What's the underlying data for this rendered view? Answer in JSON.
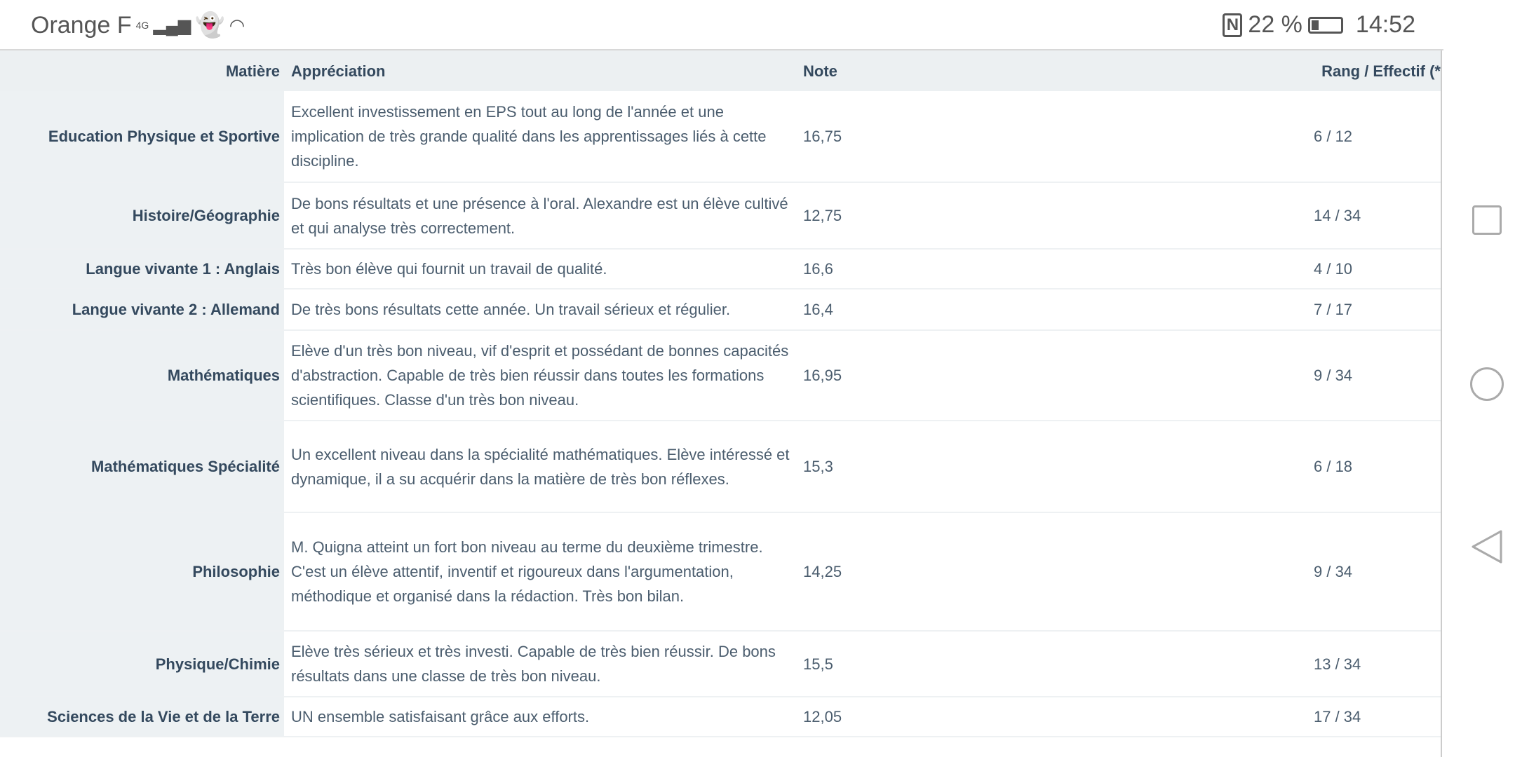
{
  "status_bar": {
    "carrier": "Orange F",
    "network": "4G",
    "battery": "22 %",
    "time": "14:52"
  },
  "table": {
    "headers": {
      "subject": "Matière",
      "appreciation": "Appréciation",
      "grade": "Note",
      "rank": "Rang / Effectif (*"
    },
    "rows": [
      {
        "subject": "Education Physique et Sportive",
        "appreciation": "Excellent investissement en EPS tout au long de l'année et une implication de très grande qualité dans les apprentissages liés à cette discipline.",
        "grade": "16,75",
        "rank": "6 / 12"
      },
      {
        "subject": "Histoire/Géographie",
        "appreciation": "De bons résultats et une présence à l'oral. Alexandre est un élève cultivé et qui analyse très correctement.",
        "grade": "12,75",
        "rank": "14 / 34"
      },
      {
        "subject": "Langue vivante 1 : Anglais",
        "appreciation": "Très bon élève qui fournit un travail de qualité.",
        "grade": "16,6",
        "rank": "4 / 10"
      },
      {
        "subject": "Langue vivante 2 : Allemand",
        "appreciation": "De très bons résultats cette année. Un travail sérieux et régulier.",
        "grade": "16,4",
        "rank": "7 / 17"
      },
      {
        "subject": "Mathématiques",
        "appreciation": "Elève d'un très bon niveau, vif d'esprit et possédant de bonnes capacités d'abstraction. Capable de très bien réussir dans toutes les formations scientifiques. Classe d'un très bon niveau.",
        "grade": "16,95",
        "rank": "9 / 34"
      },
      {
        "subject": "Mathématiques Spécialité",
        "appreciation": "Un excellent niveau dans la spécialité mathématiques. Elève intéressé et dynamique, il a su acquérir dans la matière de très bon réflexes.",
        "grade": "15,3",
        "rank": "6 / 18"
      },
      {
        "subject": "Philosophie",
        "appreciation": "M. Quigna atteint un fort bon niveau au terme du deuxième trimestre. C'est un élève attentif, inventif et rigoureux dans l'argumentation, méthodique et organisé dans la rédaction. Très bon bilan.",
        "grade": "14,25",
        "rank": "9 / 34"
      },
      {
        "subject": "Physique/Chimie",
        "appreciation": "Elève très sérieux et très investi. Capable de très bien réussir. De bons résultats dans une classe de très bon niveau.",
        "grade": "15,5",
        "rank": "13 / 34"
      },
      {
        "subject": "Sciences de la Vie et de la Terre",
        "appreciation": "UN ensemble satisfaisant grâce aux efforts.",
        "grade": "12,05",
        "rank": "17 / 34"
      }
    ]
  }
}
